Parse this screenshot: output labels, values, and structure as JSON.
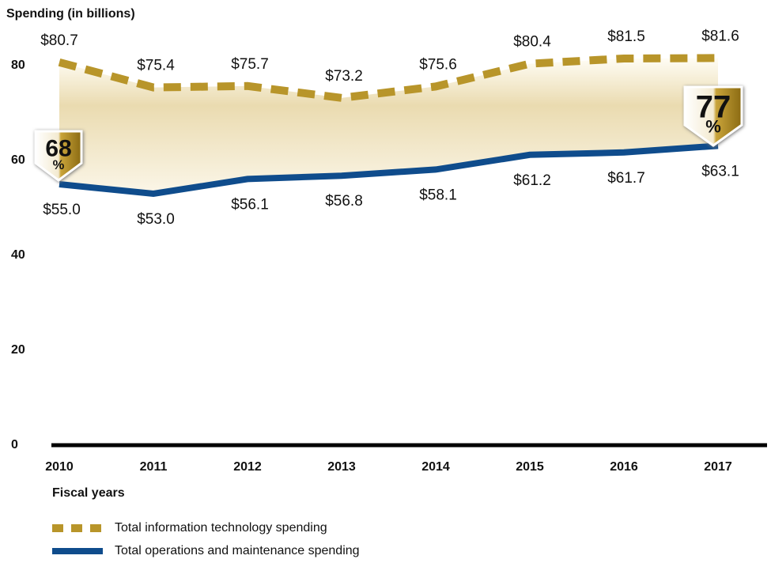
{
  "chart_data": {
    "type": "line",
    "y_label": "Spending (in billions)",
    "x_label": "Fiscal years",
    "categories": [
      "2010",
      "2011",
      "2012",
      "2013",
      "2014",
      "2015",
      "2016",
      "2017"
    ],
    "series": [
      {
        "name": "Total information technology spending",
        "color": "#b8952a",
        "style": "dashed",
        "values": [
          80.7,
          75.4,
          75.7,
          73.2,
          75.6,
          80.4,
          81.5,
          81.6
        ],
        "value_labels": [
          "$80.7",
          "$75.4",
          "$75.7",
          "$73.2",
          "$75.6",
          "$80.4",
          "$81.5",
          "$81.6"
        ]
      },
      {
        "name": "Total operations and maintenance spending",
        "color": "#0f4c8c",
        "style": "solid",
        "values": [
          55.0,
          53.0,
          56.1,
          56.8,
          58.1,
          61.2,
          61.7,
          63.1
        ],
        "value_labels": [
          "$55.0",
          "$53.0",
          "$56.1",
          "$56.8",
          "$58.1",
          "$61.2",
          "$61.7",
          "$63.1"
        ]
      }
    ],
    "annotations": [
      {
        "number": "68",
        "sign": "%"
      },
      {
        "number": "77",
        "sign": "%"
      }
    ],
    "ylim": [
      0,
      85
    ],
    "yticks": [
      0,
      20,
      40,
      60,
      80
    ],
    "grid": false
  }
}
